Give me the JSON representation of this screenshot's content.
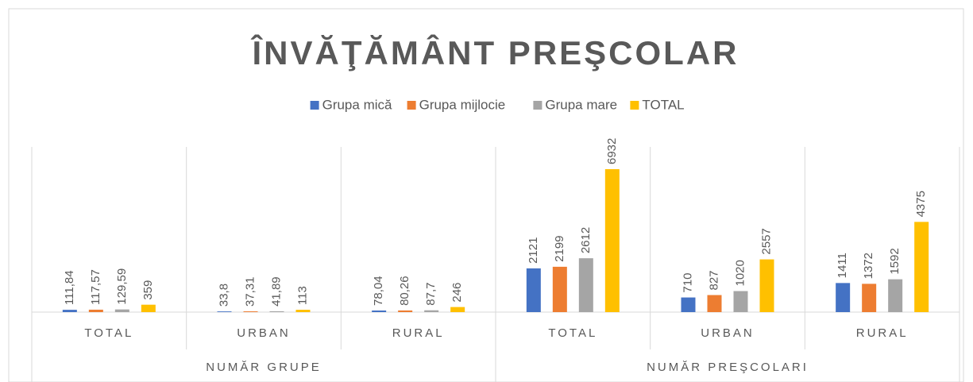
{
  "chart_data": {
    "type": "bar",
    "title": "ÎNVĂŢĂMÂNT PREŞCOLAR",
    "groups": [
      {
        "name": "NUMĂR GRUPE",
        "categories": [
          "TOTAL",
          "URBAN",
          "RURAL"
        ]
      },
      {
        "name": "NUMĂR PREŞCOLARI",
        "categories": [
          "TOTAL",
          "URBAN",
          "RURAL"
        ]
      }
    ],
    "series": [
      {
        "name": "Grupa mică",
        "color": "#4472c4",
        "values": [
          111.84,
          33.8,
          78.04,
          2121,
          710,
          1411
        ],
        "value_labels": [
          "111,84",
          "33,8",
          "78,04",
          "2121",
          "710",
          "1411"
        ]
      },
      {
        "name": "Grupa mijlocie",
        "color": "#ed7d31",
        "values": [
          117.57,
          37.31,
          80.26,
          2199,
          827,
          1372
        ],
        "value_labels": [
          "117,57",
          "37,31",
          "80,26",
          "2199",
          "827",
          "1372"
        ]
      },
      {
        "name": "Grupa mare",
        "color": "#a5a5a5",
        "values": [
          129.59,
          41.89,
          87.7,
          2612,
          1020,
          1592
        ],
        "value_labels": [
          "129,59",
          "41,89",
          "87,7",
          "2612",
          "1020",
          "1592"
        ]
      },
      {
        "name": "TOTAL",
        "color": "#ffc000",
        "values": [
          359,
          113,
          246,
          6932,
          2557,
          4375
        ]
      }
    ],
    "legend": "top"
  }
}
